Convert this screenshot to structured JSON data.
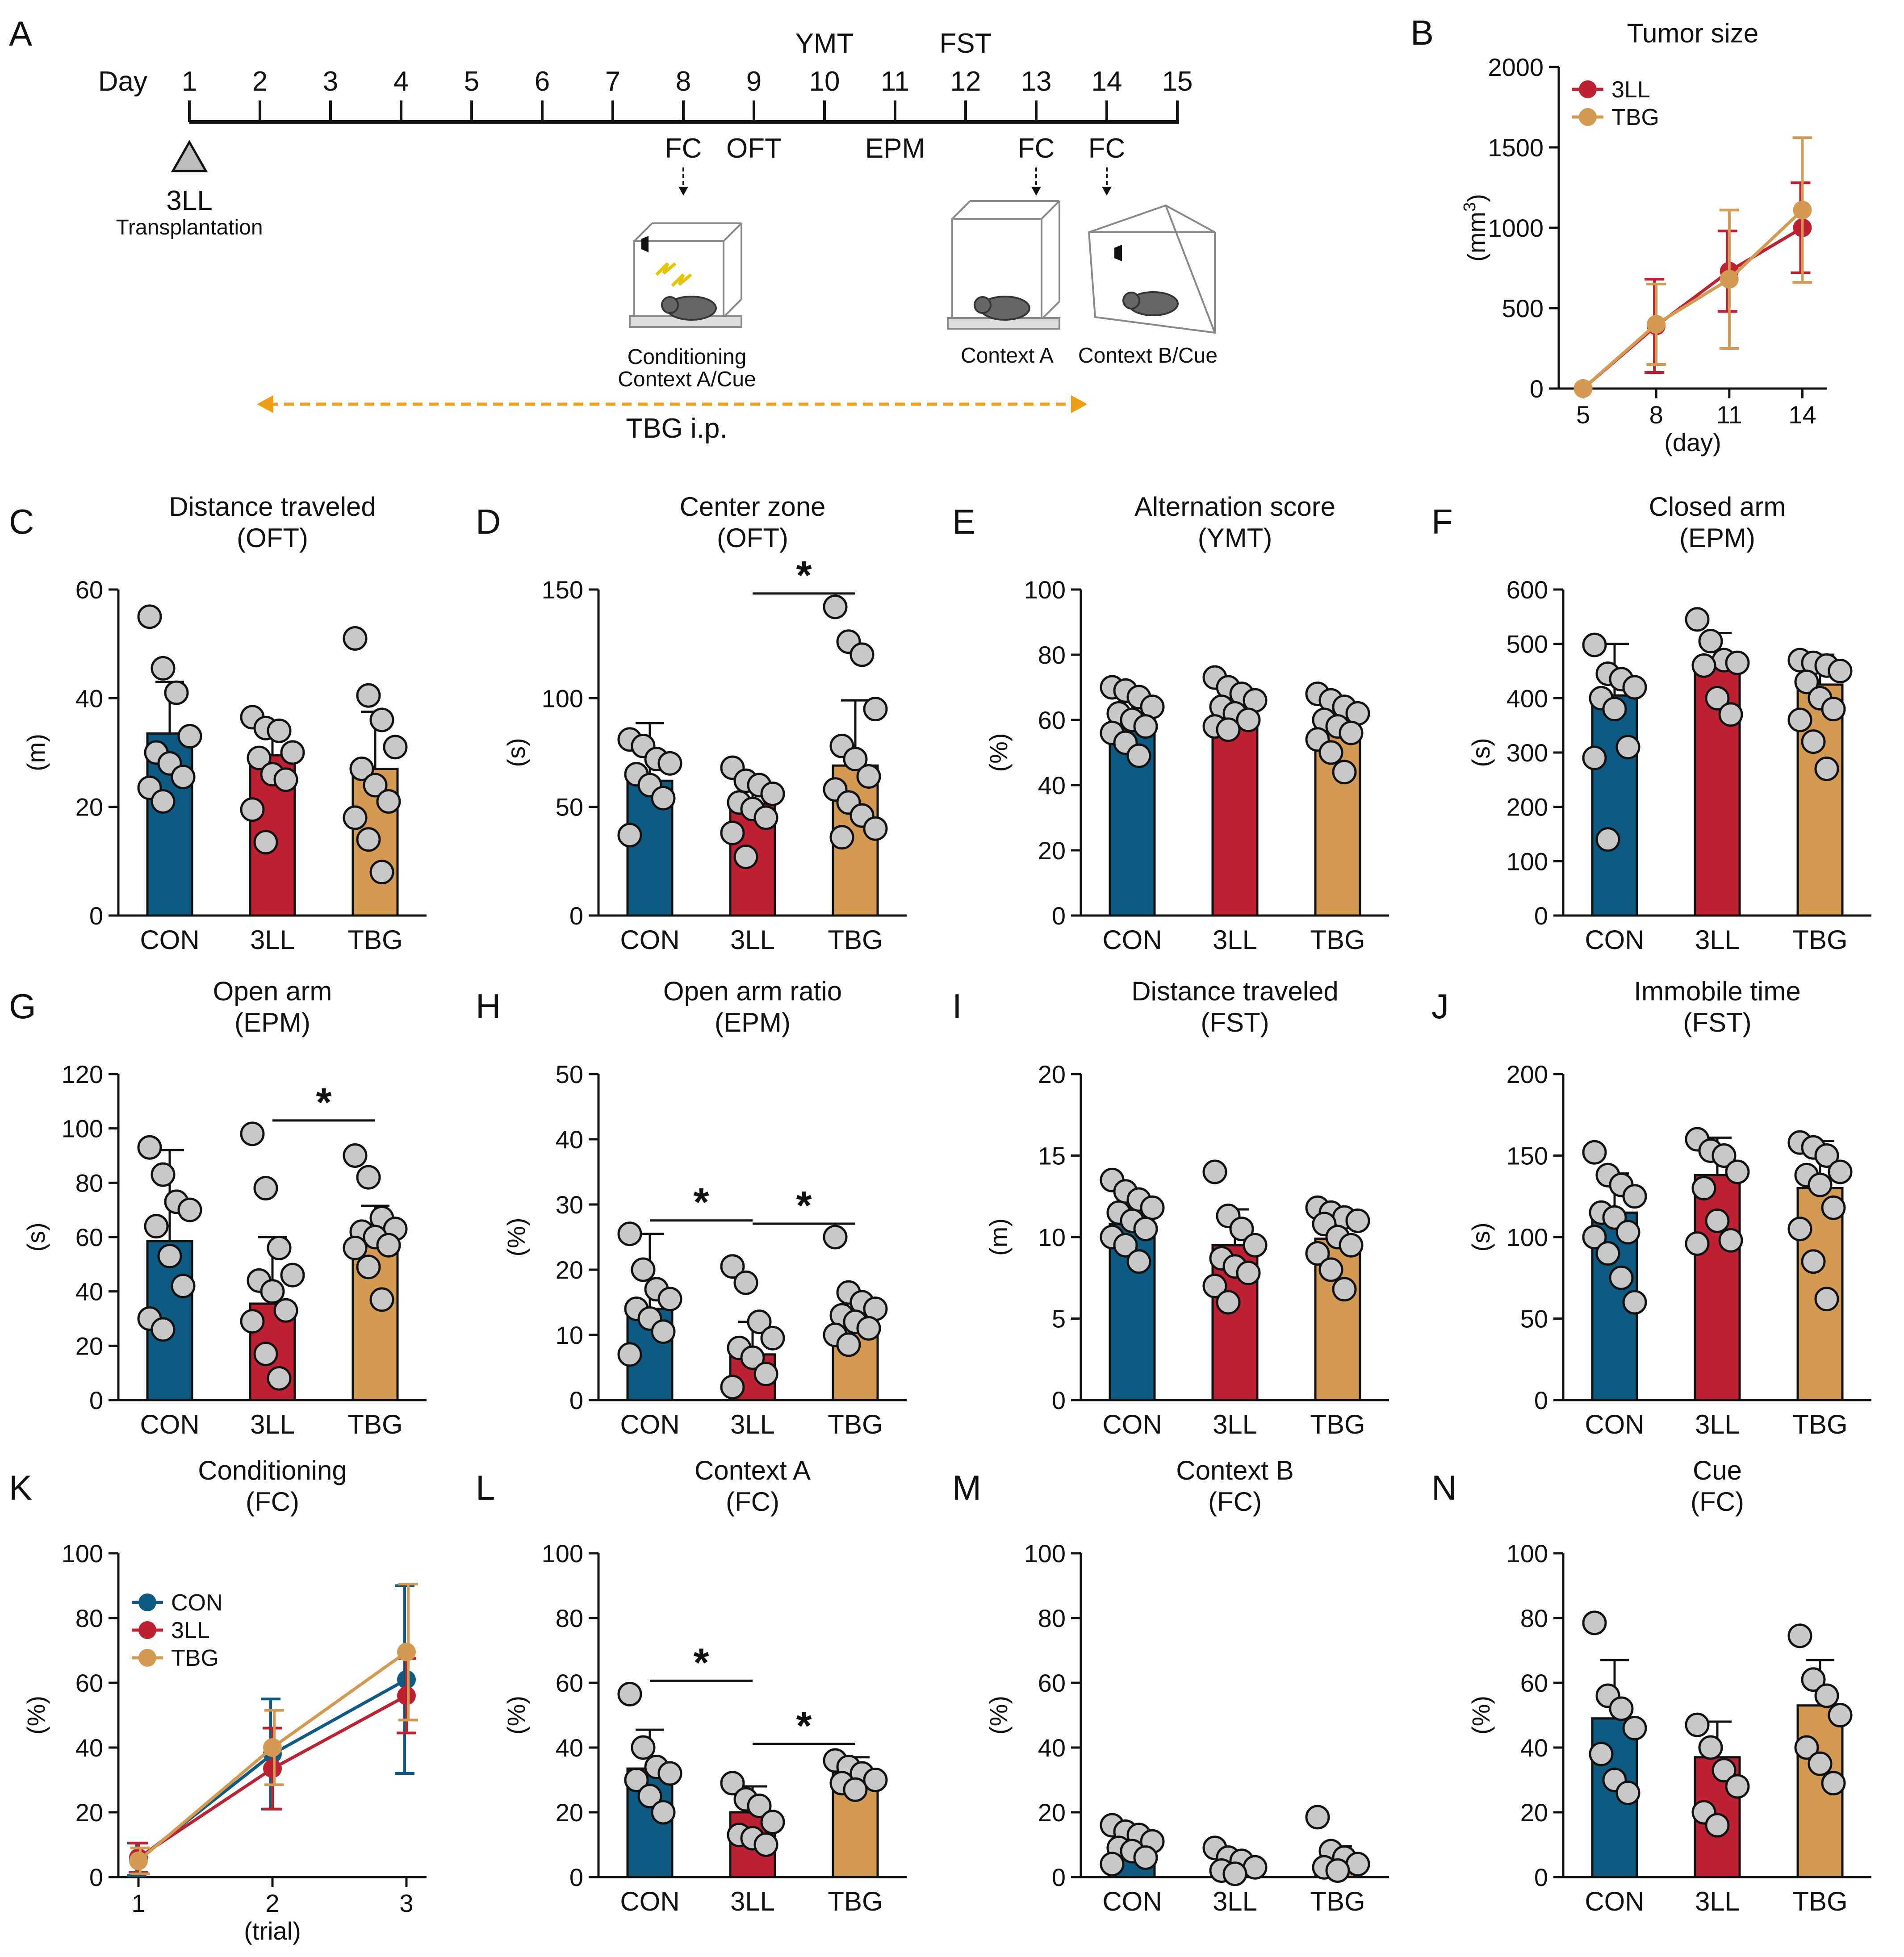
{
  "colors": {
    "con": "#0d5a83",
    "lll": "#bd2132",
    "tbg": "#d49a52",
    "dot": "#c8c8c8",
    "arrow": "#ee9f17",
    "line": "#111111"
  },
  "categories": [
    "CON",
    "3LL",
    "TBG"
  ],
  "timeline": {
    "letter": "A",
    "day_word": "Day",
    "days": [
      "1",
      "2",
      "3",
      "4",
      "5",
      "6",
      "7",
      "8",
      "9",
      "10",
      "11",
      "12",
      "13",
      "14",
      "15"
    ],
    "above": [
      {
        "day": 10,
        "label": "YMT"
      },
      {
        "day": 12,
        "label": "FST"
      }
    ],
    "below": [
      {
        "day": 8,
        "label": "FC",
        "arrow": true
      },
      {
        "day": 9,
        "label": "OFT",
        "arrow": false
      },
      {
        "day": 11,
        "label": "EPM",
        "arrow": false
      },
      {
        "day": 13,
        "label": "FC",
        "arrow": true
      },
      {
        "day": 14,
        "label": "FC",
        "arrow": true
      }
    ],
    "transplant_line1": "3LL",
    "transplant_line2": "Transplantation",
    "box1_line1": "Conditioning",
    "box1_line2": "Context A/Cue",
    "box2_label": "Context A",
    "box3_label": "Context B/Cue",
    "tbg_label": "TBG i.p."
  },
  "chart_data": [
    {
      "id": "B",
      "type": "line",
      "letter": "B",
      "title": "Tumor size",
      "ylabel": "(mm³)",
      "ylabel_base": "(mm",
      "ylabel_sup": "3",
      "ylabel_end": ")",
      "xlabel": "(day)",
      "x": [
        5,
        8,
        11,
        14
      ],
      "xlim": [
        4,
        15
      ],
      "ylim": [
        0,
        2000
      ],
      "yticks": [
        0,
        500,
        1000,
        1500,
        2000
      ],
      "series": [
        {
          "name": "3LL",
          "color": "#bd2132",
          "values": [
            0,
            390,
            730,
            1000
          ],
          "err": [
            0,
            290,
            250,
            280
          ]
        },
        {
          "name": "TBG",
          "color": "#d49a52",
          "values": [
            0,
            400,
            680,
            1110
          ],
          "err": [
            0,
            250,
            430,
            450
          ]
        }
      ]
    },
    {
      "id": "C",
      "type": "bar",
      "letter": "C",
      "title": "Distance traveled",
      "subtitle": "(OFT)",
      "ylabel": "(m)",
      "ylim": [
        0,
        60
      ],
      "yticks": [
        0,
        20,
        40,
        60
      ],
      "values": [
        33.5,
        29.5,
        27
      ],
      "err": [
        9.5,
        5,
        10.5
      ],
      "points": [
        [
          55,
          45.5,
          41,
          33,
          30,
          28,
          25.5,
          23.5,
          21
        ],
        [
          36.5,
          34.5,
          34,
          30,
          29,
          26,
          25,
          19.5,
          13.5
        ],
        [
          51,
          40.5,
          36,
          31,
          27,
          24,
          21,
          18,
          14,
          8
        ]
      ],
      "sig": []
    },
    {
      "id": "D",
      "type": "bar",
      "letter": "D",
      "title": "Center zone",
      "subtitle": "(OFT)",
      "ylabel": "(s)",
      "ylim": [
        0,
        150
      ],
      "yticks": [
        0,
        50,
        100,
        150
      ],
      "values": [
        62,
        51.5,
        69
      ],
      "err": [
        26.5,
        12,
        30
      ],
      "points": [
        [
          81,
          78,
          72,
          70,
          65,
          60,
          54,
          37
        ],
        [
          68,
          62,
          60,
          56,
          52,
          49,
          45,
          38,
          27
        ],
        [
          142,
          126,
          120,
          95,
          78,
          72,
          64,
          58,
          52,
          46,
          40,
          36
        ]
      ],
      "sig": [
        [
          1,
          2
        ]
      ]
    },
    {
      "id": "E",
      "type": "bar",
      "letter": "E",
      "title": "Alternation score",
      "subtitle": "(YMT)",
      "ylabel": "(%)",
      "ylim": [
        0,
        100
      ],
      "yticks": [
        0,
        20,
        40,
        60,
        80,
        100
      ],
      "values": [
        60.5,
        65,
        58.5
      ],
      "err": [
        5,
        5,
        7
      ],
      "points": [
        [
          70,
          69,
          67,
          64,
          62,
          60,
          58,
          56,
          53,
          49
        ],
        [
          73,
          70,
          68,
          66,
          64,
          62,
          60,
          58,
          57
        ],
        [
          68,
          66,
          64,
          62,
          60,
          58,
          56,
          54,
          50,
          44
        ]
      ],
      "sig": []
    },
    {
      "id": "F",
      "type": "bar",
      "letter": "F",
      "title": "Closed arm",
      "subtitle": "(EPM)",
      "ylabel": "(s)",
      "ylim": [
        0,
        600
      ],
      "yticks": [
        0,
        100,
        200,
        300,
        400,
        500,
        600
      ],
      "values": [
        405,
        460,
        425
      ],
      "err": [
        95,
        60,
        55
      ],
      "points": [
        [
          498,
          445,
          435,
          420,
          400,
          380,
          310,
          290,
          140
        ],
        [
          545,
          505,
          470,
          465,
          460,
          400,
          370
        ],
        [
          470,
          465,
          460,
          450,
          430,
          400,
          380,
          360,
          320,
          270
        ]
      ],
      "sig": []
    },
    {
      "id": "G",
      "type": "bar",
      "letter": "G",
      "title": "Open arm",
      "subtitle": "(EPM)",
      "ylabel": "(s)",
      "ylim": [
        0,
        120
      ],
      "yticks": [
        0,
        20,
        40,
        60,
        80,
        100,
        120
      ],
      "values": [
        58.5,
        35.5,
        62
      ],
      "err": [
        33.5,
        24.5,
        9.5
      ],
      "points": [
        [
          93,
          83,
          73,
          70,
          64,
          53,
          42,
          30,
          26
        ],
        [
          98,
          78,
          56,
          46,
          44,
          40,
          33,
          29,
          17,
          8
        ],
        [
          90,
          82,
          67,
          63,
          62,
          60,
          57,
          56,
          49,
          37
        ]
      ],
      "sig": [
        [
          1,
          2
        ]
      ]
    },
    {
      "id": "H",
      "type": "bar",
      "letter": "H",
      "title": "Open arm ratio",
      "subtitle": "(EPM)",
      "ylabel": "(%)",
      "ylim": [
        0,
        50
      ],
      "yticks": [
        0,
        10,
        20,
        30,
        40,
        50
      ],
      "values": [
        14,
        7,
        12.5
      ],
      "err": [
        11.5,
        5,
        3.5
      ],
      "points": [
        [
          25.5,
          20,
          17,
          15.5,
          14,
          12.5,
          10.5,
          7
        ],
        [
          20.5,
          18,
          12,
          9.5,
          8,
          6.5,
          4,
          2
        ],
        [
          25,
          16.5,
          15,
          14,
          13,
          12,
          11,
          10,
          8.5
        ]
      ],
      "sig": [
        [
          0,
          1
        ],
        [
          1,
          2
        ]
      ]
    },
    {
      "id": "I",
      "type": "bar",
      "letter": "I",
      "title": "Distance traveled",
      "subtitle": "(FST)",
      "ylabel": "(m)",
      "ylim": [
        0,
        20
      ],
      "yticks": [
        0,
        5,
        10,
        15,
        20
      ],
      "values": [
        10.8,
        9.5,
        9.9
      ],
      "err": [
        1.4,
        2.2,
        1.7
      ],
      "points": [
        [
          13.5,
          12.8,
          12.3,
          11.8,
          11.5,
          11,
          10.5,
          10,
          9.5,
          8.5
        ],
        [
          14,
          11.3,
          10.5,
          9.5,
          8.7,
          8.2,
          7.8,
          7,
          6
        ],
        [
          11.8,
          11.5,
          11.2,
          11,
          10.8,
          10,
          9.5,
          9,
          8,
          6.8
        ]
      ],
      "sig": []
    },
    {
      "id": "J",
      "type": "bar",
      "letter": "J",
      "title": "Immobile time",
      "subtitle": "(FST)",
      "ylabel": "(s)",
      "ylim": [
        0,
        200
      ],
      "yticks": [
        0,
        50,
        100,
        150,
        200
      ],
      "values": [
        115,
        138,
        130
      ],
      "err": [
        24,
        23,
        29
      ],
      "points": [
        [
          152,
          138,
          132,
          125,
          115,
          112,
          103,
          100,
          90,
          75,
          60
        ],
        [
          160,
          153,
          150,
          140,
          130,
          110,
          98,
          96
        ],
        [
          158,
          155,
          150,
          140,
          138,
          132,
          118,
          105,
          85,
          62
        ]
      ],
      "sig": []
    },
    {
      "id": "K",
      "type": "line",
      "letter": "K",
      "title": "Conditioning",
      "subtitle": "(FC)",
      "ylabel": "(%)",
      "xlabel": "(trial)",
      "x": [
        1,
        2,
        3
      ],
      "xlim": [
        0.85,
        3.15
      ],
      "ylim": [
        0,
        100
      ],
      "yticks": [
        0,
        20,
        40,
        60,
        80,
        100
      ],
      "series": [
        {
          "name": "CON",
          "color": "#0d5a83",
          "values": [
            5.5,
            38,
            61
          ],
          "err": [
            5,
            17,
            29
          ]
        },
        {
          "name": "3LL",
          "color": "#bd2132",
          "values": [
            6,
            33.5,
            56
          ],
          "err": [
            4.5,
            12.5,
            11.5
          ]
        },
        {
          "name": "TBG",
          "color": "#d49a52",
          "values": [
            5,
            40,
            69.5
          ],
          "err": [
            4,
            11.5,
            21
          ]
        }
      ]
    },
    {
      "id": "L",
      "type": "bar",
      "letter": "L",
      "title": "Context A",
      "subtitle": "(FC)",
      "ylabel": "(%)",
      "ylim": [
        0,
        100
      ],
      "yticks": [
        0,
        20,
        40,
        60,
        80,
        100
      ],
      "values": [
        33.5,
        20,
        32.5
      ],
      "err": [
        12,
        8,
        4.5
      ],
      "points": [
        [
          56.5,
          40,
          34,
          32,
          30,
          25,
          20
        ],
        [
          29,
          24,
          22,
          17,
          13,
          12,
          10
        ],
        [
          36,
          34,
          32,
          30,
          29,
          27
        ]
      ],
      "sig": [
        [
          0,
          1
        ],
        [
          1,
          2
        ]
      ]
    },
    {
      "id": "M",
      "type": "bar",
      "letter": "M",
      "title": "Context B",
      "subtitle": "(FC)",
      "ylabel": "(%)",
      "ylim": [
        0,
        100
      ],
      "yticks": [
        0,
        20,
        40,
        60,
        80,
        100
      ],
      "values": [
        10,
        3,
        4.5
      ],
      "err": [
        5.5,
        1.5,
        5
      ],
      "points": [
        [
          16,
          14,
          13,
          11,
          9,
          8,
          6,
          4
        ],
        [
          9,
          6,
          5,
          3,
          2,
          1
        ],
        [
          18.5,
          8,
          6,
          4,
          3,
          2
        ]
      ],
      "sig": []
    },
    {
      "id": "N",
      "type": "bar",
      "letter": "N",
      "title": "Cue",
      "subtitle": "(FC)",
      "ylabel": "(%)",
      "ylim": [
        0,
        100
      ],
      "yticks": [
        0,
        20,
        40,
        60,
        80,
        100
      ],
      "values": [
        49,
        37,
        53
      ],
      "err": [
        18,
        11,
        14
      ],
      "points": [
        [
          78.5,
          56,
          52,
          46,
          38,
          30,
          26
        ],
        [
          47,
          40,
          33,
          28,
          20,
          16
        ],
        [
          74.5,
          61,
          56,
          50,
          40,
          35,
          29
        ]
      ],
      "sig": []
    }
  ]
}
